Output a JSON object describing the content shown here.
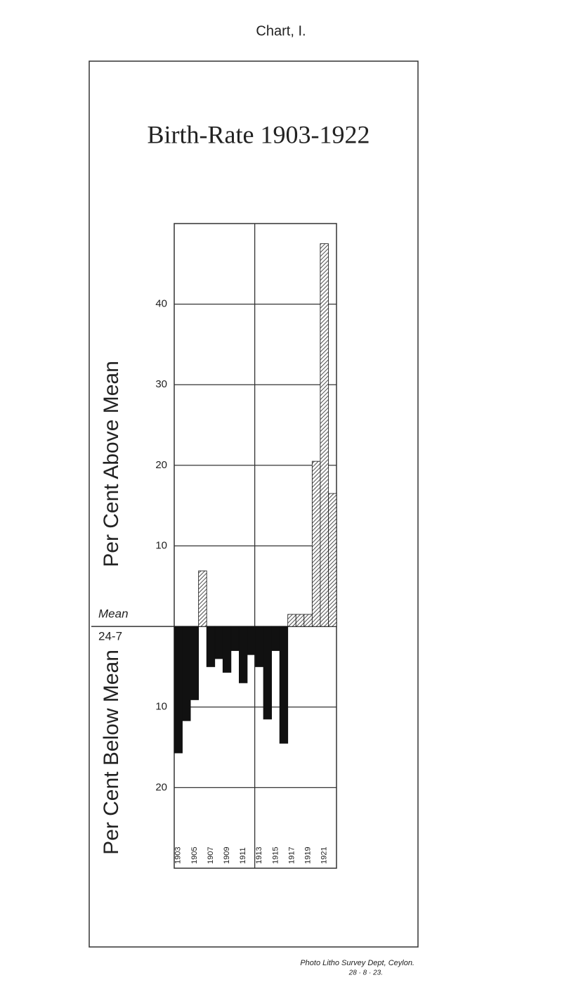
{
  "chart_data": {
    "type": "bar",
    "caption": "Chart, I.",
    "title": "Birth-Rate 1903-1922",
    "ylabel_above": "Per Cent Above Mean",
    "ylabel_below": "Per Cent Below Mean",
    "mean_label": "Mean",
    "mean_value_label": "24-7",
    "categories": [
      "1903",
      null,
      "1905",
      null,
      "1907",
      null,
      "1909",
      null,
      "1911",
      null,
      "1913",
      null,
      "1915",
      null,
      "1917",
      null,
      "1919",
      null,
      "1921",
      null
    ],
    "values": [
      -15.7,
      -11.7,
      -9.1,
      6.9,
      -5.0,
      -4.0,
      -5.7,
      -3.0,
      -7.0,
      -3.5,
      -5.0,
      -11.5,
      -3.0,
      -14.5,
      1.5,
      1.5,
      1.5,
      20.5,
      47.5,
      16.5
    ],
    "color": "#111",
    "ylim": [
      -30,
      50
    ],
    "yticks": [
      {
        "value": -20,
        "label": "20"
      },
      {
        "value": -10,
        "label": "10"
      },
      10,
      20,
      30,
      40
    ],
    "grid": true,
    "footer": "Photo Litho Survey Dept, Ceylon.",
    "footer_date": "28 · 8 · 23."
  }
}
